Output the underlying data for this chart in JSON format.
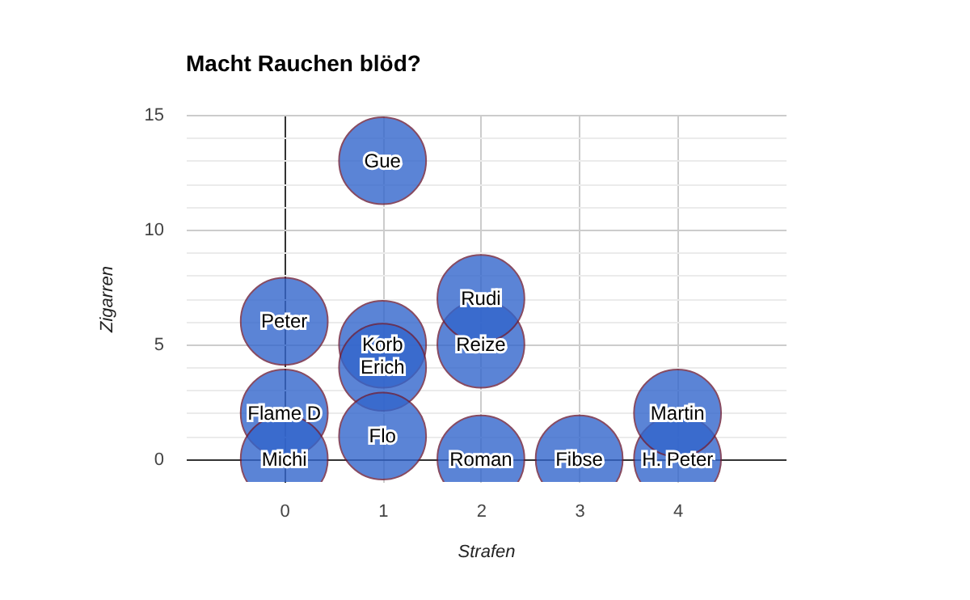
{
  "chart_data": {
    "type": "bubble",
    "title": "Macht Rauchen blöd?",
    "xlabel": "Strafen",
    "ylabel": "Zigarren",
    "xlim": [
      -1,
      5.1
    ],
    "xticks": [
      0,
      1,
      2,
      3,
      4
    ],
    "ylim": [
      -1,
      15
    ],
    "yticks": [
      0,
      {
        "value": 1,
        "label": null
      },
      {
        "value": 2,
        "label": null
      },
      {
        "value": 3,
        "label": null
      },
      {
        "value": 4,
        "label": null
      },
      5,
      {
        "value": 6,
        "label": null
      },
      {
        "value": 7,
        "label": null
      },
      {
        "value": 8,
        "label": null
      },
      {
        "value": 9,
        "label": null
      },
      10,
      {
        "value": 11,
        "label": null
      },
      {
        "value": 12,
        "label": null
      },
      {
        "value": 13,
        "label": null
      },
      {
        "value": 14,
        "label": null
      },
      15
    ],
    "grid": true,
    "series": [
      {
        "name": "Peter",
        "color": "#3366cc",
        "x": [
          0
        ],
        "values": [
          6
        ],
        "sizes": [
          1
        ]
      },
      {
        "name": "Flame D",
        "color": "#3366cc",
        "x": [
          0
        ],
        "values": [
          2
        ],
        "sizes": [
          1
        ]
      },
      {
        "name": "Michi",
        "color": "#3366cc",
        "x": [
          0
        ],
        "values": [
          0
        ],
        "sizes": [
          1
        ]
      },
      {
        "name": "Gue",
        "color": "#3366cc",
        "x": [
          1
        ],
        "values": [
          13
        ],
        "sizes": [
          1
        ]
      },
      {
        "name": "Korb",
        "color": "#3366cc",
        "x": [
          1
        ],
        "values": [
          5
        ],
        "sizes": [
          1
        ]
      },
      {
        "name": "Erich",
        "color": "#3366cc",
        "x": [
          1
        ],
        "values": [
          4
        ],
        "sizes": [
          1
        ]
      },
      {
        "name": "Flo",
        "color": "#3366cc",
        "x": [
          1
        ],
        "values": [
          1
        ],
        "sizes": [
          1
        ]
      },
      {
        "name": "Reize",
        "color": "#3366cc",
        "x": [
          2
        ],
        "values": [
          5
        ],
        "sizes": [
          1
        ]
      },
      {
        "name": "Rudi",
        "color": "#3366cc",
        "x": [
          2
        ],
        "values": [
          7
        ],
        "sizes": [
          1
        ]
      },
      {
        "name": "Roman",
        "color": "#3366cc",
        "x": [
          2
        ],
        "values": [
          0
        ],
        "sizes": [
          1
        ]
      },
      {
        "name": "Fibse",
        "color": "#3366cc",
        "x": [
          3
        ],
        "values": [
          0
        ],
        "sizes": [
          1
        ]
      },
      {
        "name": "H. Peter",
        "color": "#3366cc",
        "x": [
          4
        ],
        "values": [
          0
        ],
        "sizes": [
          1
        ]
      },
      {
        "name": "Martin",
        "color": "#3366cc",
        "x": [
          4
        ],
        "values": [
          2
        ],
        "sizes": [
          1
        ]
      }
    ]
  }
}
